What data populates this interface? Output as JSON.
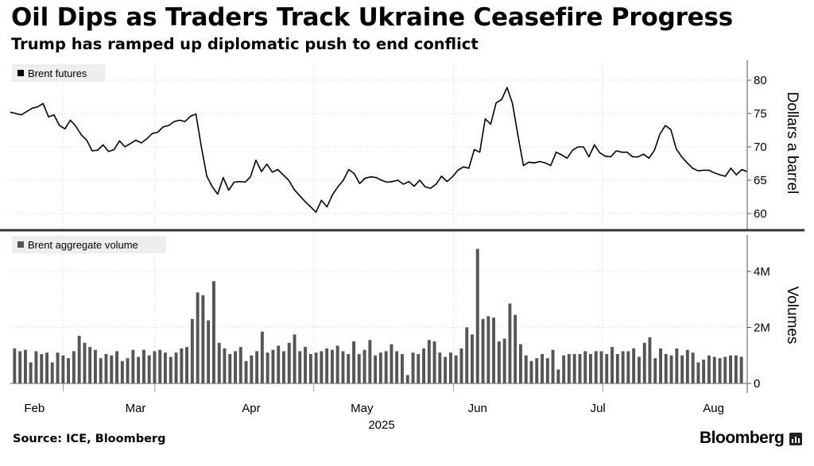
{
  "header": {
    "title": "Oil Dips as Traders Track Ukraine Ceasefire Progress",
    "subtitle": "Trump has ramped up diplomatic push to end conflict"
  },
  "footer": {
    "source": "Source: ICE, Bloomberg",
    "brand": "Bloomberg"
  },
  "chart_data": [
    {
      "type": "line",
      "legend": "Brent futures",
      "ylabel": "Dollars a barrel",
      "ylim": [
        57.5,
        82.5
      ],
      "yticks": [
        60,
        65,
        70,
        75,
        80
      ],
      "xlim": [
        0,
        153
      ],
      "x_tick_positions": [
        11,
        30,
        63,
        92,
        123,
        153
      ],
      "x_month_labels": [
        {
          "label": "Feb",
          "pos": 5
        },
        {
          "label": "Mar",
          "pos": 26
        },
        {
          "label": "Apr",
          "pos": 50
        },
        {
          "label": "May",
          "pos": 73
        },
        {
          "label": "Jun",
          "pos": 97
        },
        {
          "label": "Jul",
          "pos": 122
        },
        {
          "label": "Aug",
          "pos": 146
        }
      ],
      "x_year_label": {
        "label": "2025",
        "pos": 77
      },
      "color": "#000000",
      "values": [
        75.2,
        75.0,
        74.8,
        75.3,
        75.8,
        76.0,
        76.5,
        74.5,
        74.8,
        73.2,
        72.7,
        74.0,
        73.1,
        71.8,
        71.0,
        69.4,
        69.5,
        70.3,
        69.3,
        69.6,
        70.9,
        70.0,
        70.5,
        71.0,
        70.6,
        71.2,
        72.0,
        72.2,
        73.0,
        73.2,
        73.8,
        74.0,
        73.8,
        74.6,
        74.9,
        70.0,
        65.6,
        64.0,
        62.9,
        65.4,
        63.5,
        64.7,
        64.8,
        64.7,
        65.5,
        68.0,
        66.3,
        67.4,
        66.2,
        66.6,
        65.8,
        65.0,
        63.6,
        62.7,
        61.8,
        61.0,
        60.2,
        62.0,
        61.0,
        62.8,
        64.0,
        65.0,
        66.6,
        66.0,
        64.5,
        65.3,
        65.5,
        65.4,
        65.0,
        64.7,
        64.8,
        65.0,
        64.4,
        64.8,
        64.1,
        65.0,
        64.0,
        63.8,
        64.4,
        65.6,
        64.8,
        65.5,
        66.5,
        67.0,
        66.8,
        69.6,
        69.2,
        74.2,
        73.4,
        76.6,
        77.1,
        78.9,
        76.5,
        71.7,
        67.2,
        67.7,
        67.6,
        67.8,
        67.6,
        67.2,
        69.2,
        68.8,
        68.3,
        69.5,
        70.0,
        70.0,
        68.5,
        70.3,
        69.1,
        68.6,
        68.5,
        69.4,
        69.2,
        69.2,
        68.5,
        68.5,
        68.9,
        68.3,
        69.5,
        71.9,
        73.2,
        72.6,
        69.7,
        68.5,
        67.6,
        66.8,
        66.4,
        66.5,
        66.5,
        66.1,
        65.8,
        65.6,
        66.8,
        65.8,
        66.6,
        66.3
      ]
    },
    {
      "type": "bar",
      "legend": "Brent aggregate volume",
      "ylabel": "Volumes",
      "ylim": [
        0,
        5300000
      ],
      "yticks": [
        0,
        2000000,
        4000000
      ],
      "ytick_labels": [
        "0",
        "2M",
        "4M"
      ],
      "color": "#555555",
      "values": [
        1250000,
        1150000,
        1200000,
        750000,
        1150000,
        1050000,
        1100000,
        750000,
        1100000,
        1000000,
        900000,
        1150000,
        1700000,
        1450000,
        1300000,
        1200000,
        900000,
        1050000,
        1000000,
        1150000,
        800000,
        900000,
        1200000,
        950000,
        1200000,
        1000000,
        1150000,
        1200000,
        1100000,
        950000,
        1100000,
        1250000,
        1300000,
        2300000,
        3250000,
        3150000,
        2250000,
        3650000,
        1450000,
        1250000,
        1050000,
        1150000,
        1300000,
        800000,
        1000000,
        1150000,
        1850000,
        1100000,
        1200000,
        1350000,
        1150000,
        1450000,
        1750000,
        1150000,
        1300000,
        1050000,
        1100000,
        1150000,
        1250000,
        1200000,
        1350000,
        1150000,
        1050000,
        1500000,
        1050000,
        1200000,
        1550000,
        1000000,
        1100000,
        1150000,
        1400000,
        1150000,
        1050000,
        300000,
        1100000,
        1050000,
        1250000,
        1550000,
        1500000,
        1100000,
        950000,
        1100000,
        1000000,
        1250000,
        2000000,
        1750000,
        4800000,
        2300000,
        2400000,
        2350000,
        1500000,
        1600000,
        2850000,
        2450000,
        1400000,
        1000000,
        800000,
        900000,
        1050000,
        900000,
        1200000,
        500000,
        1000000,
        1050000,
        1050000,
        1050000,
        1150000,
        1050000,
        1150000,
        1150000,
        1050000,
        1300000,
        1050000,
        1150000,
        1150000,
        1250000,
        950000,
        1450000,
        1650000,
        900000,
        1250000,
        1050000,
        1000000,
        1250000,
        1000000,
        1200000,
        1100000,
        750000,
        850000,
        1000000,
        950000,
        900000,
        950000,
        1000000,
        1000000,
        950000
      ]
    }
  ]
}
